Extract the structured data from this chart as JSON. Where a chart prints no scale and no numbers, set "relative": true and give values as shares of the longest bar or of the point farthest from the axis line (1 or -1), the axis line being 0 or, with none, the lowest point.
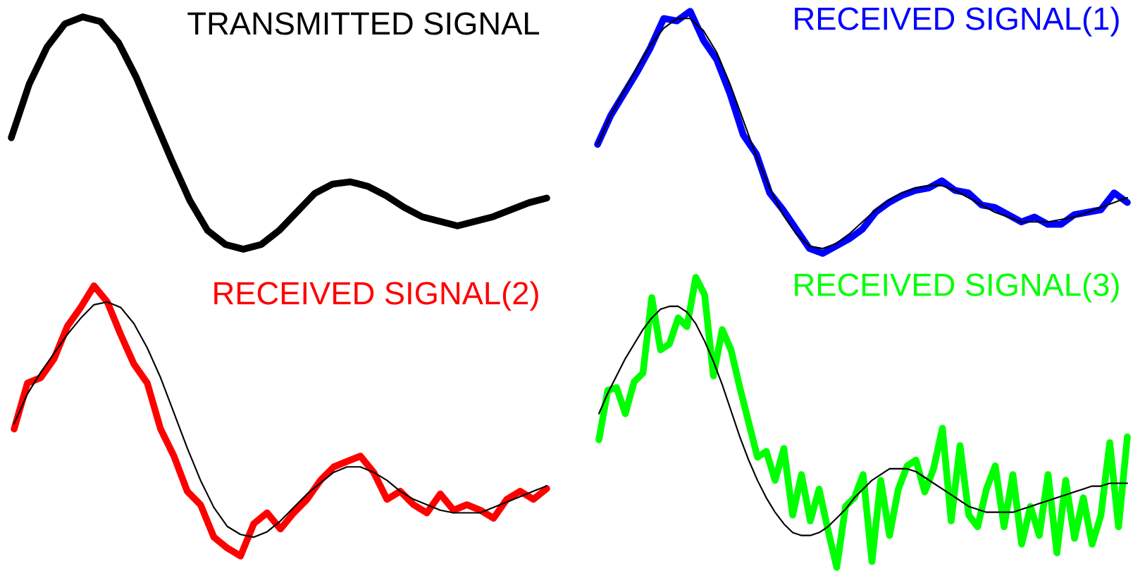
{
  "chart_data": [
    {
      "type": "line",
      "title": "TRANSMITTED SIGNAL",
      "relative": true,
      "categories": [
        null,
        null,
        null,
        null,
        null,
        null,
        null,
        null,
        null,
        null,
        null,
        null,
        null,
        null,
        null,
        null,
        null,
        null,
        null,
        null,
        null,
        null,
        null,
        null,
        null,
        null,
        null,
        null,
        null,
        null,
        null
      ],
      "series": [
        {
          "color": "#000000",
          "values": [
            0.48,
            0.71,
            0.87,
            0.97,
            1.0,
            0.98,
            0.89,
            0.74,
            0.56,
            0.38,
            0.21,
            0.08,
            0.02,
            0,
            0.02,
            0.08,
            0.16,
            0.24,
            0.28,
            0.29,
            0.27,
            0.23,
            0.18,
            0.14,
            0.12,
            0.1,
            0.12,
            0.14,
            0.17,
            0.2,
            0.22
          ]
        }
      ]
    },
    {
      "type": "line",
      "title": "RECEIVED SIGNAL(1)",
      "relative": true,
      "categories": [
        null,
        null,
        null,
        null,
        null,
        null,
        null,
        null,
        null,
        null,
        null,
        null,
        null,
        null,
        null,
        null,
        null,
        null,
        null,
        null,
        null,
        null,
        null,
        null,
        null,
        null,
        null,
        null,
        null,
        null,
        null,
        null,
        null,
        null,
        null,
        null,
        null,
        null,
        null,
        null,
        null
      ],
      "series": [
        {
          "color": "#0000ff",
          "values": [
            0.45,
            0.57,
            0.66,
            0.75,
            0.85,
            0.97,
            0.96,
            1.0,
            0.88,
            0.8,
            0.66,
            0.49,
            0.41,
            0.25,
            0.18,
            0.1,
            0.02,
            0,
            0.03,
            0.06,
            0.1,
            0.17,
            0.21,
            0.24,
            0.26,
            0.27,
            0.3,
            0.26,
            0.25,
            0.2,
            0.19,
            0.16,
            0.13,
            0.15,
            0.12,
            0.12,
            0.16,
            0.17,
            0.18,
            0.25,
            0.21
          ]
        },
        {
          "color": "#000000",
          "values": [
            0.45,
            0.57,
            0.67,
            0.77,
            0.86,
            0.93,
            0.97,
            0.97,
            0.92,
            0.83,
            0.7,
            0.55,
            0.4,
            0.27,
            0.16,
            0.08,
            0.03,
            0.02,
            0.04,
            0.08,
            0.13,
            0.18,
            0.22,
            0.25,
            0.27,
            0.28,
            0.28,
            0.26,
            0.23,
            0.2,
            0.17,
            0.15,
            0.13,
            0.13,
            0.13,
            0.14,
            0.15,
            0.17,
            0.19,
            0.21,
            0.23
          ]
        }
      ]
    },
    {
      "type": "line",
      "title": "RECEIVED SIGNAL(2)",
      "relative": true,
      "categories": [
        null,
        null,
        null,
        null,
        null,
        null,
        null,
        null,
        null,
        null,
        null,
        null,
        null,
        null,
        null,
        null,
        null,
        null,
        null,
        null,
        null,
        null,
        null,
        null,
        null,
        null,
        null,
        null,
        null,
        null,
        null,
        null,
        null,
        null,
        null,
        null,
        null,
        null,
        null,
        null,
        null
      ],
      "series": [
        {
          "color": "#ff0000",
          "values": [
            0.47,
            0.64,
            0.66,
            0.73,
            0.85,
            0.92,
            1.0,
            0.94,
            0.82,
            0.71,
            0.64,
            0.47,
            0.37,
            0.24,
            0.19,
            0.07,
            0.03,
            0,
            0.12,
            0.16,
            0.1,
            0.16,
            0.21,
            0.28,
            0.33,
            0.35,
            0.37,
            0.31,
            0.21,
            0.24,
            0.19,
            0.16,
            0.23,
            0.17,
            0.19,
            0.17,
            0.14,
            0.21,
            0.24,
            0.21,
            0.25
          ]
        },
        {
          "color": "#000000",
          "values": [
            0.49,
            0.6,
            0.68,
            0.75,
            0.82,
            0.88,
            0.93,
            0.94,
            0.92,
            0.86,
            0.77,
            0.66,
            0.53,
            0.4,
            0.28,
            0.18,
            0.11,
            0.08,
            0.07,
            0.09,
            0.13,
            0.18,
            0.23,
            0.27,
            0.31,
            0.33,
            0.33,
            0.31,
            0.28,
            0.24,
            0.21,
            0.19,
            0.17,
            0.16,
            0.16,
            0.16,
            0.18,
            0.2,
            0.22,
            0.24,
            0.26
          ]
        }
      ]
    },
    {
      "type": "line",
      "title": "RECEIVED SIGNAL(3)",
      "relative": true,
      "categories": [
        null,
        null,
        null,
        null,
        null,
        null,
        null,
        null,
        null,
        null,
        null,
        null,
        null,
        null,
        null,
        null,
        null,
        null,
        null,
        null,
        null,
        null,
        null,
        null,
        null,
        null,
        null,
        null,
        null,
        null,
        null,
        null,
        null,
        null,
        null,
        null,
        null,
        null,
        null,
        null,
        null,
        null,
        null,
        null,
        null,
        null,
        null,
        null,
        null,
        null,
        null,
        null,
        null,
        null,
        null,
        null,
        null,
        null,
        null,
        null,
        null
      ],
      "series": [
        {
          "color": "#00ff00",
          "values": [
            0.44,
            0.61,
            0.62,
            0.53,
            0.64,
            0.67,
            0.93,
            0.75,
            0.77,
            0.86,
            0.83,
            1.0,
            0.94,
            0.66,
            0.82,
            0.75,
            0.62,
            0.5,
            0.38,
            0.4,
            0.3,
            0.41,
            0.18,
            0.32,
            0.16,
            0.27,
            0.13,
            0,
            0.21,
            0.24,
            0.32,
            0.02,
            0.3,
            0.11,
            0.27,
            0.35,
            0.37,
            0.26,
            0.34,
            0.48,
            0.16,
            0.42,
            0.18,
            0.14,
            0.27,
            0.35,
            0.14,
            0.32,
            0.08,
            0.21,
            0.11,
            0.32,
            0.05,
            0.3,
            0.1,
            0.24,
            0.08,
            0.18,
            0.43,
            0.14,
            0.45
          ]
        },
        {
          "color": "#000000",
          "values": [
            0.53,
            0.6,
            0.66,
            0.72,
            0.77,
            0.82,
            0.86,
            0.89,
            0.9,
            0.9,
            0.88,
            0.84,
            0.78,
            0.71,
            0.63,
            0.54,
            0.45,
            0.37,
            0.3,
            0.24,
            0.19,
            0.15,
            0.12,
            0.11,
            0.11,
            0.12,
            0.14,
            0.17,
            0.2,
            0.24,
            0.27,
            0.3,
            0.32,
            0.34,
            0.34,
            0.34,
            0.33,
            0.31,
            0.29,
            0.27,
            0.25,
            0.23,
            0.21,
            0.2,
            0.19,
            0.19,
            0.19,
            0.19,
            0.2,
            0.21,
            0.22,
            0.23,
            0.24,
            0.25,
            0.26,
            0.27,
            0.28,
            0.28,
            0.29,
            0.29,
            0.29
          ]
        }
      ]
    }
  ]
}
